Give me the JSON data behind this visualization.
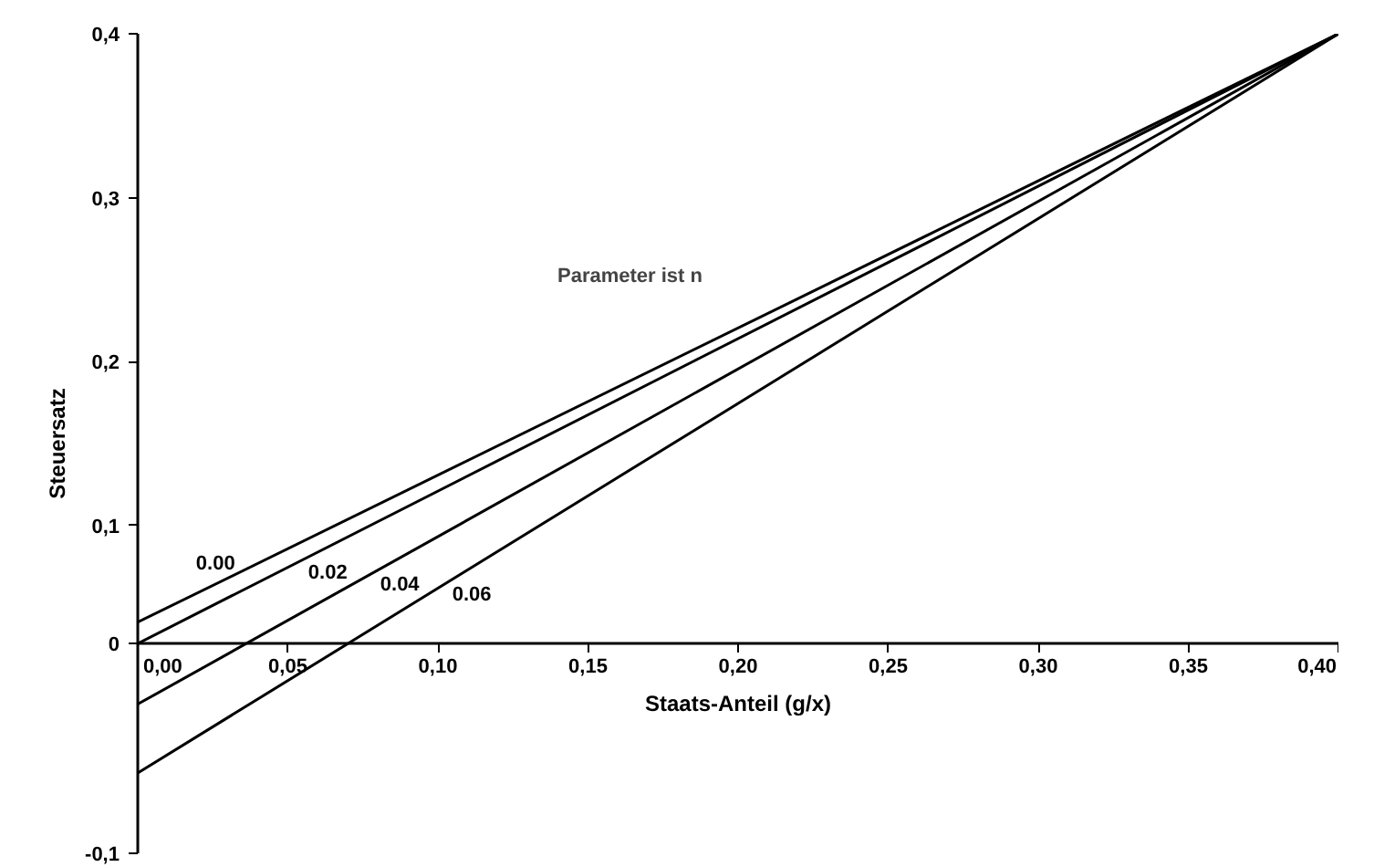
{
  "chart_data": {
    "type": "line",
    "xlabel": "Staats-Anteil (g/x)",
    "ylabel": "Steuersatz",
    "annotations": [
      "Parameter ist n"
    ],
    "x": [
      0,
      0.4
    ],
    "series": [
      {
        "name": "0.00",
        "color": "#000000",
        "values": [
          0.041,
          0.4
        ]
      },
      {
        "name": "0.02",
        "color": "#000000",
        "values": [
          0.028,
          0.4
        ]
      },
      {
        "name": "0.04",
        "color": "#000000",
        "values": [
          -0.009,
          0.4
        ]
      },
      {
        "name": "0.06",
        "color": "#000000",
        "values": [
          -0.051,
          0.4
        ]
      }
    ],
    "xlim": [
      0,
      0.4
    ],
    "xticks": [
      {
        "value": 0,
        "label": "0,00"
      },
      {
        "value": 0.05,
        "label": "0,05"
      },
      {
        "value": 0.1,
        "label": "0,10"
      },
      {
        "value": 0.15,
        "label": "0,15"
      },
      {
        "value": 0.2,
        "label": "0,20"
      },
      {
        "value": 0.25,
        "label": "0,25"
      },
      {
        "value": 0.3,
        "label": "0,30"
      },
      {
        "value": 0.35,
        "label": "0,35"
      },
      {
        "value": 0.4,
        "label": "0,40"
      }
    ],
    "ylim": [
      -0.1,
      0.4
    ],
    "yticks": [
      {
        "value": -0.1,
        "label": "-0,1"
      },
      {
        "value": 0.028,
        "label": "0"
      },
      {
        "value": 0.1,
        "label": "0,1"
      },
      {
        "value": 0.2,
        "label": "0,2"
      },
      {
        "value": 0.3,
        "label": "0,3"
      },
      {
        "value": 0.4,
        "label": "0,4"
      }
    ],
    "grid": false,
    "legend": false,
    "marker": "none",
    "line_style": "solid"
  }
}
